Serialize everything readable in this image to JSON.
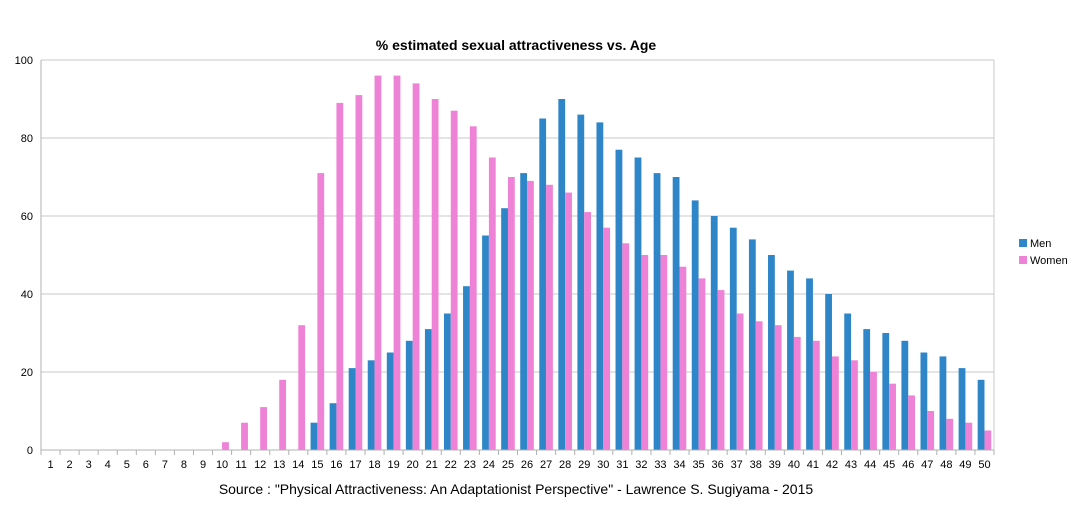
{
  "chart_data": {
    "type": "bar",
    "title": "% estimated sexual attractiveness vs. Age",
    "source": "Source :  \"Physical Attractiveness: An Adaptationist Perspective\" - Lawrence S. Sugiyama - 2015",
    "xlabel": "",
    "ylabel": "",
    "ylim": [
      0,
      100
    ],
    "yticks": [
      0,
      20,
      40,
      60,
      80,
      100
    ],
    "grid": true,
    "legend_position": "right",
    "categories": [
      "1",
      "2",
      "3",
      "4",
      "5",
      "6",
      "7",
      "8",
      "9",
      "10",
      "11",
      "12",
      "13",
      "14",
      "15",
      "16",
      "17",
      "18",
      "19",
      "20",
      "21",
      "22",
      "23",
      "24",
      "25",
      "26",
      "27",
      "28",
      "29",
      "30",
      "31",
      "32",
      "33",
      "34",
      "35",
      "36",
      "37",
      "38",
      "39",
      "40",
      "41",
      "42",
      "43",
      "44",
      "45",
      "46",
      "47",
      "48",
      "49",
      "50"
    ],
    "series": [
      {
        "name": "Men",
        "color": "#2e86c8",
        "values": [
          0,
          0,
          0,
          0,
          0,
          0,
          0,
          0,
          0,
          0,
          0,
          0,
          0,
          0,
          7,
          12,
          21,
          23,
          25,
          28,
          31,
          35,
          42,
          55,
          62,
          71,
          85,
          90,
          86,
          84,
          77,
          75,
          71,
          70,
          64,
          60,
          57,
          54,
          50,
          46,
          44,
          40,
          35,
          31,
          30,
          28,
          25,
          24,
          21,
          18
        ]
      },
      {
        "name": "Women",
        "color": "#ee82d6",
        "values": [
          0,
          0,
          0,
          0,
          0,
          0,
          0,
          0,
          0,
          2,
          7,
          11,
          18,
          32,
          71,
          89,
          91,
          96,
          96,
          94,
          90,
          87,
          83,
          75,
          70,
          69,
          68,
          66,
          61,
          57,
          53,
          50,
          50,
          47,
          44,
          41,
          35,
          33,
          32,
          29,
          28,
          24,
          23,
          20,
          17,
          14,
          10,
          8,
          7,
          5
        ]
      }
    ]
  }
}
